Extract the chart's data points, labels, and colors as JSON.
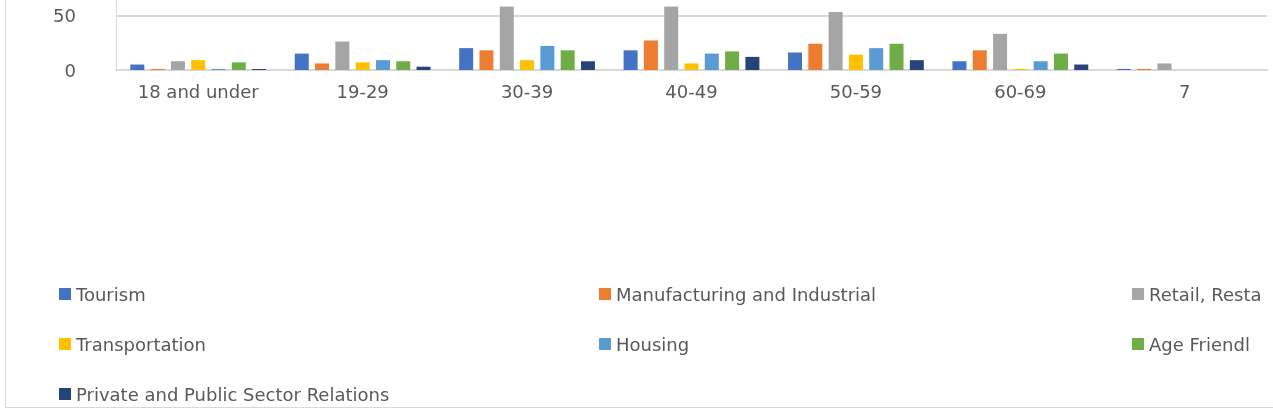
{
  "chart_data": {
    "type": "bar",
    "categories": [
      "18 and under",
      "19-29",
      "30-39",
      "40-49",
      "50-59",
      "60-69",
      "7"
    ],
    "series": [
      {
        "name": "Tourism",
        "color": "#4472c4",
        "values": [
          5,
          15,
          20,
          18,
          16,
          8,
          1
        ]
      },
      {
        "name": "Manufacturing and Industrial",
        "color": "#ed7d31",
        "values": [
          1,
          6,
          18,
          27,
          24,
          18,
          1
        ]
      },
      {
        "name": "Retail, Resta",
        "color": "#a5a5a5",
        "values": [
          8,
          26,
          58,
          58,
          53,
          33,
          6
        ]
      },
      {
        "name": "Transportation",
        "color": "#ffc000",
        "values": [
          9,
          7,
          9,
          6,
          14,
          1,
          null
        ]
      },
      {
        "name": "Housing",
        "color": "#5b9bd5",
        "values": [
          1,
          9,
          22,
          15,
          20,
          8,
          null
        ]
      },
      {
        "name": "Age Friendl",
        "color": "#70ad47",
        "values": [
          7,
          8,
          18,
          17,
          24,
          15,
          null
        ]
      },
      {
        "name": "Private and Public Sector Relations",
        "color": "#264478",
        "values": [
          1,
          3,
          8,
          12,
          9,
          5,
          null
        ]
      }
    ],
    "ylim": [
      0,
      64
    ],
    "yticks": [
      0,
      50
    ],
    "grid": "y",
    "legend": "bottom"
  }
}
